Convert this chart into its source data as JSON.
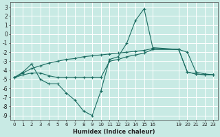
{
  "xlabel": "Humidex (Indice chaleur)",
  "background_color": "#c8eae4",
  "grid_color": "#ffffff",
  "line_color": "#1a6b60",
  "xlim": [
    -0.5,
    23.5
  ],
  "ylim": [
    -9.5,
    3.5
  ],
  "xticks": [
    0,
    1,
    2,
    3,
    4,
    5,
    6,
    7,
    8,
    9,
    10,
    11,
    12,
    13,
    14,
    15,
    16,
    19,
    20,
    21,
    22,
    23
  ],
  "yticks": [
    3,
    2,
    1,
    0,
    -1,
    -2,
    -3,
    -4,
    -5,
    -6,
    -7,
    -8,
    -9
  ],
  "series": [
    {
      "x": [
        0,
        1,
        2,
        3,
        4,
        5,
        6,
        7,
        8,
        9,
        10,
        11,
        12,
        13,
        14,
        15,
        16,
        19,
        20,
        21,
        22,
        23
      ],
      "y": [
        -4.8,
        -4.2,
        -3.3,
        -5.0,
        -5.5,
        -5.5,
        -6.5,
        -7.3,
        -8.5,
        -9.0,
        -6.3,
        -2.8,
        -2.5,
        -1.0,
        1.5,
        2.8,
        -1.5,
        -1.7,
        -4.2,
        -4.4,
        -4.5,
        -4.5
      ]
    },
    {
      "x": [
        0,
        1,
        2,
        3,
        4,
        5,
        6,
        7,
        8,
        9,
        10,
        11,
        12,
        13,
        14,
        15,
        16,
        19,
        20,
        21,
        22,
        23
      ],
      "y": [
        -4.8,
        -4.3,
        -3.8,
        -3.5,
        -3.2,
        -3.0,
        -2.8,
        -2.7,
        -2.5,
        -2.4,
        -2.3,
        -2.2,
        -2.1,
        -2.0,
        -1.9,
        -1.8,
        -1.6,
        -1.7,
        -2.0,
        -4.2,
        -4.4,
        -4.5
      ]
    },
    {
      "x": [
        0,
        1,
        2,
        3,
        4,
        5,
        6,
        7,
        8,
        9,
        10,
        11,
        12,
        13,
        14,
        15,
        16,
        19,
        20,
        21,
        22,
        23
      ],
      "y": [
        -4.8,
        -4.5,
        -4.3,
        -4.3,
        -4.6,
        -4.8,
        -4.8,
        -4.8,
        -4.8,
        -4.8,
        -4.8,
        -3.0,
        -2.8,
        -2.5,
        -2.3,
        -2.1,
        -1.7,
        -1.7,
        -4.2,
        -4.4,
        -4.5,
        -4.5
      ]
    }
  ]
}
